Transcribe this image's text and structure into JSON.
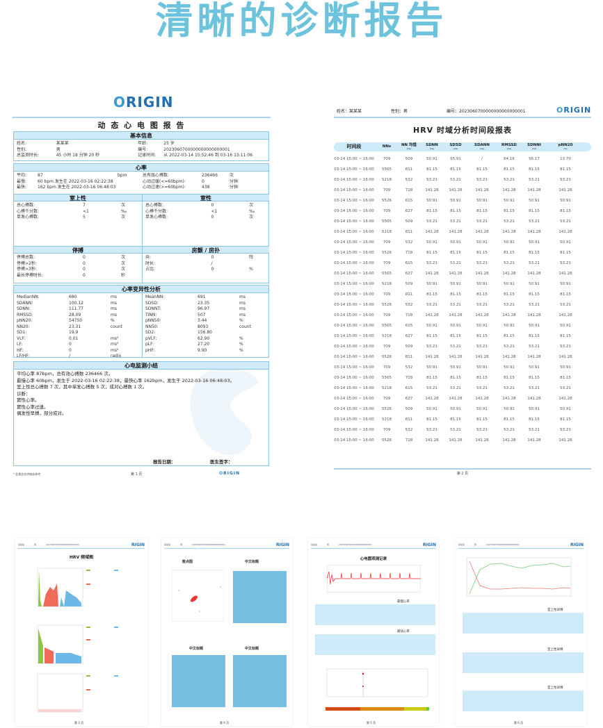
{
  "hero_title": "清晰的诊断报告",
  "colors": {
    "accent": "#6ec3dc",
    "section_bg": "#cfeaf9",
    "border": "#8cc4e6",
    "brand": "#1f6fb2"
  },
  "logo": {
    "text_o": "O",
    "text_rest": "RIGIN"
  },
  "page1": {
    "report_title": "动 态 心 电 图 报 告",
    "basic": {
      "title": "基本信息",
      "rows": [
        [
          "姓名:",
          "某某某",
          "年龄:",
          "25 岁"
        ],
        [
          "性别:",
          "男",
          "编号:",
          "2023060700000000000000001"
        ],
        [
          "总监测时长:",
          "45 小时 18 分钟 20 秒",
          "记录时间:",
          "从 2022-03-14 15:52:46 到 03-16 13:11:06"
        ]
      ]
    },
    "heart_rate": {
      "title": "心率",
      "rows": [
        [
          "平均:",
          "87",
          "bpm",
          "总有效心搏数:",
          "236466",
          "次"
        ],
        [
          "最慢:",
          "60  bpm 发生在 2022-03-16 02:22:38",
          "",
          "心动过缓(<=60bpm):",
          "0",
          "分钟"
        ],
        [
          "最快:",
          "162 bpm 发生在 2022-03-16 06:48:03",
          "",
          "心动过速(>=60bpm):",
          "438",
          "分钟"
        ]
      ]
    },
    "svt": {
      "title": "室上性",
      "rows": [
        [
          "总心搏数:",
          "7",
          "次"
        ],
        [
          "心搏千分数:",
          "<1",
          "‰"
        ],
        [
          "单发心搏数:",
          "5",
          "次"
        ]
      ]
    },
    "vt": {
      "title": "室性",
      "rows": [
        [
          "总心搏数:",
          "0",
          "次"
        ],
        [
          "心搏千分数:",
          "<1",
          "‰"
        ],
        [
          "单发心搏数:",
          "0",
          "次"
        ]
      ]
    },
    "pause": {
      "title": "停搏",
      "rows": [
        [
          "停搏总数:",
          "0",
          "次"
        ],
        [
          "停搏>2秒:",
          "0",
          "次"
        ],
        [
          "停搏>3秒:",
          "0",
          "次"
        ],
        [
          "最长停搏时长:",
          "0",
          "秒"
        ]
      ]
    },
    "af": {
      "title": "房颤 / 房扑",
      "rows": [
        [
          "共:",
          "0",
          "阵"
        ],
        [
          "时长:",
          "/",
          ""
        ],
        [
          "占比:",
          "0",
          "%"
        ]
      ]
    },
    "hrv": {
      "title": "心率变异性分析",
      "left": [
        [
          "MedianNN:",
          "680",
          "ms"
        ],
        [
          "SDANN:",
          "100.12",
          "ms"
        ],
        [
          "SDNN:",
          "111.77",
          "ms"
        ],
        [
          "RMSSD:",
          "28.09",
          "ms"
        ],
        [
          "pNN20:",
          "54750",
          "%"
        ],
        [
          "NN20:",
          "23.31",
          "count"
        ],
        [
          "SD1:",
          "19.9",
          ""
        ],
        [
          "VLF:",
          "0.01",
          "ms²"
        ],
        [
          "LF:",
          "0",
          "ms²"
        ],
        [
          "HF:",
          "0",
          "ms²"
        ],
        [
          "LF/HF:",
          "/",
          "radio"
        ]
      ],
      "right": [
        [
          "MeanNN:",
          "691",
          "ms"
        ],
        [
          "SDSD:",
          "23.35",
          "ms"
        ],
        [
          "SDNNT:",
          "96.97",
          "ms"
        ],
        [
          "TINN:",
          "507",
          "ms"
        ],
        [
          "pNN50:",
          "3.44",
          "%"
        ],
        [
          "NN50:",
          "8093",
          "count"
        ],
        [
          "SD2:",
          "156.80",
          ""
        ],
        [
          "pVLF:",
          "62.90",
          "%"
        ],
        [
          "pLF:",
          "27.20",
          "%"
        ],
        [
          "pHF:",
          "9.90",
          "%"
        ]
      ]
    },
    "summary": {
      "title": "心电监测小结",
      "lines": [
        "平均心率 87bpm，总有效心搏数 236466 次。",
        "最慢心率 60bpm，发生于 2022-03-16 02:22:38，最快心率 162bpm，发生于 2022-03-16 06:48:03。",
        "室上性总心搏数 7 次，其中单发心搏数 5 次，成对心搏数 1 次。",
        "诊断：",
        "窦性心率。",
        "窦性心率过速。",
        "偶发性早搏，部分成对。"
      ],
      "report_date_label": "报告日期：",
      "doctor_label": "医生签字："
    },
    "footer": {
      "note": "* 此报告仅供临床参考",
      "page": "第 1 页"
    }
  },
  "page_header": {
    "name_label": "姓名：",
    "name": "某某某",
    "gender_label": "性别：",
    "gender": "男",
    "id_label": "编号：",
    "id": "2023060700000000000000001"
  },
  "page2": {
    "title": "HRV 时域分析时间段报表",
    "columns": [
      {
        "label": "时间段",
        "unit": ""
      },
      {
        "label": "NNs",
        "unit": ""
      },
      {
        "label": "NN 均值",
        "unit": "(ms)"
      },
      {
        "label": "SDNN",
        "unit": "(ms)"
      },
      {
        "label": "SDSD",
        "unit": "(ms)"
      },
      {
        "label": "SDANN",
        "unit": "(ms)"
      },
      {
        "label": "RMSSD",
        "unit": "(ms)"
      },
      {
        "label": "SDNNI",
        "unit": "(ms)"
      },
      {
        "label": "pNN20",
        "unit": "(%)"
      }
    ],
    "rows": [
      [
        "03-14 15:00 ~ 16:00",
        "709",
        "509",
        "50.91",
        "55.91",
        "/",
        "64.16",
        "56.17",
        "13.70"
      ],
      [
        "03-14 15:00 ~ 16:00",
        "5565",
        "811",
        "81.15",
        "81.15",
        "81.15",
        "81.15",
        "81.15",
        "81.15"
      ],
      [
        "03-14 15:00 ~ 16:00",
        "5218",
        "532",
        "53.21",
        "53.21",
        "53.21",
        "53.21",
        "53.21",
        "53.21"
      ],
      [
        "03-14 15:00 ~ 16:00",
        "709",
        "718",
        "141.28",
        "141.28",
        "141.28",
        "141.28",
        "141.28",
        "141.28"
      ],
      [
        "03-14 15:00 ~ 16:00",
        "5526",
        "615",
        "50.91",
        "50.91",
        "50.91",
        "50.91",
        "50.91",
        "50.91"
      ],
      [
        "03-14 15:00 ~ 16:00",
        "709",
        "627",
        "81.15",
        "81.15",
        "81.15",
        "81.15",
        "81.15",
        "81.15"
      ],
      [
        "03-14 15:00 ~ 16:00",
        "5565",
        "509",
        "53.21",
        "53.21",
        "53.21",
        "53.21",
        "53.21",
        "53.21"
      ],
      [
        "03-14 15:00 ~ 16:00",
        "5218",
        "811",
        "141.28",
        "141.28",
        "141.28",
        "141.28",
        "141.28",
        "141.28"
      ],
      [
        "03-14 15:00 ~ 16:00",
        "709",
        "532",
        "50.91",
        "50.91",
        "50.91",
        "50.91",
        "50.91",
        "50.91"
      ],
      [
        "03-14 15:00 ~ 16:00",
        "5526",
        "718",
        "81.15",
        "81.15",
        "81.15",
        "81.15",
        "81.15",
        "81.15"
      ],
      [
        "03-14 15:00 ~ 16:00",
        "709",
        "615",
        "53.21",
        "53.21",
        "53.21",
        "53.21",
        "53.21",
        "53.21"
      ],
      [
        "03-14 15:00 ~ 16:00",
        "5565",
        "627",
        "141.28",
        "141.28",
        "141.28",
        "141.28",
        "141.28",
        "141.28"
      ],
      [
        "03-14 15:00 ~ 16:00",
        "5218",
        "509",
        "50.91",
        "50.91",
        "50.91",
        "50.91",
        "50.91",
        "50.91"
      ],
      [
        "03-14 15:00 ~ 16:00",
        "709",
        "811",
        "81.15",
        "81.15",
        "81.15",
        "81.15",
        "81.15",
        "81.15"
      ],
      [
        "03-14 15:00 ~ 16:00",
        "5526",
        "532",
        "53.21",
        "53.21",
        "53.21",
        "53.21",
        "53.21",
        "53.21"
      ],
      [
        "03-14 15:00 ~ 16:00",
        "709",
        "718",
        "141.28",
        "141.28",
        "141.28",
        "141.28",
        "141.28",
        "141.28"
      ],
      [
        "03-14 15:00 ~ 16:00",
        "5565",
        "615",
        "50.91",
        "50.91",
        "50.91",
        "50.91",
        "50.91",
        "50.91"
      ],
      [
        "03-14 15:00 ~ 16:00",
        "5218",
        "627",
        "81.15",
        "81.15",
        "81.15",
        "81.15",
        "81.15",
        "81.15"
      ],
      [
        "03-14 15:00 ~ 16:00",
        "709",
        "509",
        "53.21",
        "53.21",
        "53.21",
        "53.21",
        "53.21",
        "53.21"
      ],
      [
        "03-14 15:00 ~ 16:00",
        "5526",
        "811",
        "141.28",
        "141.28",
        "141.28",
        "141.28",
        "141.28",
        "141.28"
      ],
      [
        "03-14 15:00 ~ 16:00",
        "709",
        "532",
        "50.91",
        "50.91",
        "50.91",
        "50.91",
        "50.91",
        "50.91"
      ],
      [
        "03-14 15:00 ~ 16:00",
        "5565",
        "718",
        "81.15",
        "81.15",
        "81.15",
        "81.15",
        "81.15",
        "81.15"
      ],
      [
        "03-14 15:00 ~ 16:00",
        "5218",
        "615",
        "53.21",
        "53.21",
        "53.21",
        "53.21",
        "53.21",
        "53.21"
      ],
      [
        "03-14 15:00 ~ 16:00",
        "709",
        "627",
        "141.28",
        "141.28",
        "141.28",
        "141.28",
        "141.28",
        "141.28"
      ],
      [
        "03-14 15:00 ~ 16:00",
        "5526",
        "509",
        "50.91",
        "50.91",
        "50.91",
        "50.91",
        "50.91",
        "50.91"
      ],
      [
        "03-14 15:00 ~ 16:00",
        "5218",
        "811",
        "81.15",
        "81.15",
        "81.15",
        "81.15",
        "81.15",
        "81.15"
      ],
      [
        "03-14 15:00 ~ 16:00",
        "709",
        "532",
        "53.21",
        "53.21",
        "53.21",
        "53.21",
        "53.21",
        "53.21"
      ],
      [
        "03-14 15:00 ~ 16:00",
        "5526",
        "718",
        "141.28",
        "141.28",
        "141.28",
        "141.28",
        "141.28",
        "141.28"
      ]
    ],
    "footer_page": "第 2 页"
  },
  "thumbs": {
    "p3": {
      "title": "HRV 频域图",
      "page": "第 3 页"
    },
    "p4": {
      "scatter_title": "散点图",
      "panel_title": "中文标题",
      "page": "第 4 页"
    },
    "p5": {
      "title": "心电图观测记录",
      "slow": "最慢心率",
      "fast": "最快心率",
      "page": "第 5 页"
    },
    "p6": {
      "svpb": "室上性早搏",
      "page": "第 6 页"
    }
  }
}
